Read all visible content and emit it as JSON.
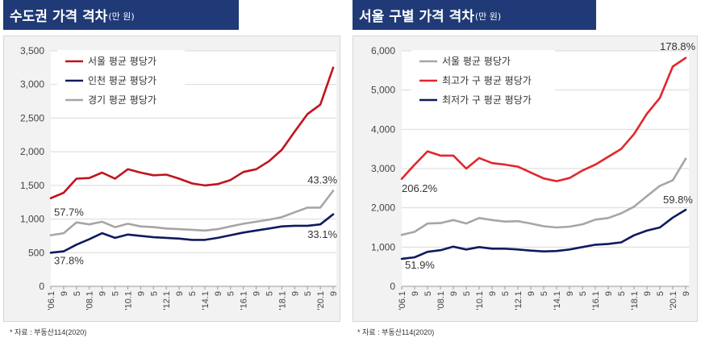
{
  "panels": [
    {
      "title": "수도권 가격 격차",
      "unit": "(만 원)",
      "source": "* 자료 : 부동산114(2020)",
      "chart_data": {
        "type": "line",
        "y_ticks": [
          "0",
          "500",
          "1,000",
          "1,500",
          "2,000",
          "2,500",
          "3,000",
          "3,500"
        ],
        "ylim": [
          0,
          3500
        ],
        "grid": true,
        "legend_position": "top-left",
        "x_ticks": [
          "'06.1",
          "9",
          "5",
          "'08.1",
          "9",
          "5",
          "'10.1",
          "9",
          "5",
          "'12.1",
          "9",
          "5",
          "'14.1",
          "9",
          "5",
          "'16.1",
          "9",
          "5",
          "'18.1",
          "9",
          "5",
          "'20.1",
          "9"
        ],
        "x": [
          0,
          4,
          8,
          12,
          16,
          20,
          24,
          28,
          32,
          36,
          40,
          44,
          48,
          52,
          56,
          60,
          64,
          68,
          72,
          76,
          80,
          84,
          88
        ],
        "series": [
          {
            "name": "서울 평균 평당가",
            "color": "#c0141c",
            "values": [
              1310,
              1390,
              1600,
              1610,
              1690,
              1600,
              1740,
              1690,
              1650,
              1660,
              1600,
              1530,
              1500,
              1520,
              1580,
              1700,
              1740,
              1860,
              2030,
              2300,
              2560,
              2700,
              3250
            ]
          },
          {
            "name": "인천 평균 평당가",
            "color": "#0d1b5e",
            "values": [
              500,
              520,
              620,
              700,
              790,
              720,
              770,
              750,
              730,
              720,
              710,
              690,
              690,
              720,
              760,
              800,
              830,
              860,
              890,
              900,
              900,
              920,
              1070
            ]
          },
          {
            "name": "경기 평균 평당가",
            "color": "#a6a6a6",
            "values": [
              760,
              790,
              950,
              920,
              960,
              880,
              930,
              890,
              880,
              860,
              850,
              840,
              830,
              850,
              890,
              930,
              960,
              990,
              1030,
              1100,
              1170,
              1170,
              1420
            ]
          }
        ],
        "annotations": [
          {
            "text": "57.7%",
            "x": 1,
            "y": 1050
          },
          {
            "text": "37.8%",
            "x": 1,
            "y": 330
          },
          {
            "text": "43.3%",
            "x": 80,
            "y": 1530
          },
          {
            "text": "33.1%",
            "x": 80,
            "y": 720
          }
        ]
      }
    },
    {
      "title": "서울 구별 가격 격차",
      "unit": "(만 원)",
      "source": "* 자료 : 부동산114(2020)",
      "chart_data": {
        "type": "line",
        "y_ticks": [
          "0",
          "1,000",
          "2,000",
          "3,000",
          "4,000",
          "5,000",
          "6,000"
        ],
        "ylim": [
          0,
          6000
        ],
        "grid": true,
        "legend_position": "top-left",
        "x_ticks": [
          "'06.1",
          "9",
          "5",
          "'08.1",
          "9",
          "5",
          "'10.1",
          "9",
          "5",
          "'12.1",
          "9",
          "5",
          "'14.1",
          "9",
          "5",
          "'16.1",
          "9",
          "5",
          "'18.1",
          "9",
          "5",
          "'20.1",
          "9"
        ],
        "x": [
          0,
          4,
          8,
          12,
          16,
          20,
          24,
          28,
          32,
          36,
          40,
          44,
          48,
          52,
          56,
          60,
          64,
          68,
          72,
          76,
          80,
          84,
          88
        ],
        "series": [
          {
            "name": "서울 평균 평당가",
            "color": "#a6a6a6",
            "values": [
              1310,
              1390,
              1600,
              1610,
              1690,
              1600,
              1740,
              1690,
              1650,
              1660,
              1600,
              1530,
              1500,
              1520,
              1580,
              1700,
              1740,
              1860,
              2030,
              2300,
              2560,
              2700,
              3250
            ]
          },
          {
            "name": "최고가 구 평균 평당가",
            "color": "#e3262b",
            "values": [
              2740,
              3100,
              3440,
              3330,
              3330,
              3000,
              3270,
              3140,
              3100,
              3050,
              2900,
              2750,
              2680,
              2760,
              2950,
              3100,
              3300,
              3500,
              3880,
              4400,
              4800,
              5600,
              5820
            ]
          },
          {
            "name": "최저가 구 평균 평당가",
            "color": "#0d1b5e",
            "values": [
              700,
              740,
              880,
              920,
              1010,
              940,
              1000,
              960,
              960,
              940,
              910,
              890,
              900,
              940,
              1000,
              1060,
              1080,
              1120,
              1300,
              1420,
              1500,
              1750,
              1950
            ]
          }
        ],
        "annotations": [
          {
            "text": "206.2%",
            "x": 0,
            "y": 2400
          },
          {
            "text": "51.9%",
            "x": 1,
            "y": 450
          },
          {
            "text": "178.8%",
            "x": 80,
            "y": 6020
          },
          {
            "text": "59.8%",
            "x": 81,
            "y": 2120
          }
        ]
      }
    }
  ]
}
